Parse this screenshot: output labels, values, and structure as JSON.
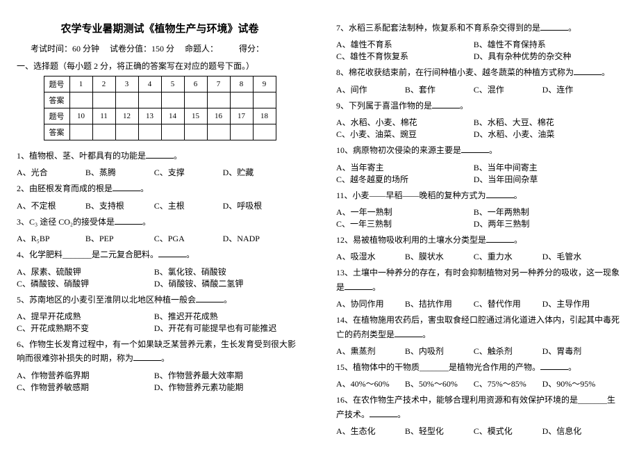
{
  "title": "农学专业暑期测试《植物生产与环境》试卷",
  "meta": {
    "time": "考试时间：60 分钟",
    "score": "试卷分值：150 分",
    "author": "命题人：",
    "got": "得分："
  },
  "instr": "一、选择题（每小题 2 分，将正确的答案写在对应的题号下面。）",
  "tbl": {
    "row1lab": "题号",
    "row2lab": "答案",
    "row3lab": "题号",
    "row4lab": "答案",
    "r1": [
      "1",
      "2",
      "3",
      "4",
      "5",
      "6",
      "7",
      "8",
      "9"
    ],
    "r3": [
      "10",
      "11",
      "12",
      "13",
      "14",
      "15",
      "16",
      "17",
      "18"
    ]
  },
  "left": [
    {
      "q": "1、植物根、茎、叶都具有的功能是",
      "opts": [
        "A、光合",
        "B、蒸腾",
        "C、支撑",
        "D、贮藏"
      ],
      "cls": "four"
    },
    {
      "q": "2、由胚根发育而成的根是",
      "opts": [
        "A、不定根",
        "B、支持根",
        "C、主根",
        "D、呼吸根"
      ],
      "cls": "four"
    },
    {
      "q": "3、C₃ 途径 CO₂的接受体是",
      "opts": [
        "A、R₅BP",
        "B、PEP",
        "C、PGA",
        "D、NADP"
      ],
      "cls": "four"
    },
    {
      "q": "4、化学肥料_______是二元复合肥料。",
      "opts": [
        "A、尿素、硫酸钾",
        "B、氯化铵、硝酸铵",
        "C、磷酸铵、硝酸钾",
        "D、硝酸铵、磷酸二氢钾"
      ],
      "cls": ""
    },
    {
      "q": "5、苏南地区的小麦引至淮阴以北地区种植一般会",
      "opts": [
        "A、提早开花成熟",
        "B、推迟开花成熟",
        "C、开花成熟期不变",
        "D、开花有可能提早也有可能推迟"
      ],
      "cls": ""
    },
    {
      "q": "6、作物生长发育过程中，有一个如果缺乏某营养元素，生长发育受到很大影响而很难弥补损失的时期，称为",
      "opts": [
        "A、作物营养临界期",
        "B、作物营养最大效率期",
        "C、作物营养敏感期",
        "D、作物营养元素功能期"
      ],
      "cls": ""
    }
  ],
  "right": [
    {
      "q": "7、水稻三系配套法制种，恢复系和不育系杂交得到的是",
      "opts": [
        "A、雄性不育系",
        "B、雄性不育保持系",
        "C、雄性不育恢复系",
        "D、具有杂种优势的杂交种"
      ],
      "cls": ""
    },
    {
      "q": "8、棉花收获结束前，在行间种植小麦、越冬蔬菜的种植方式称为",
      "opts": [
        "A、间作",
        "B、套作",
        "C、混作",
        "D、连作"
      ],
      "cls": "four"
    },
    {
      "q": "9、下列属于喜温作物的是",
      "opts": [
        "A、水稻、小麦、棉花",
        "B、水稻、大豆、棉花",
        "C、小麦、油菜、豌豆",
        "D、水稻、小麦、油菜"
      ],
      "cls": ""
    },
    {
      "q": "10、病原物初次侵染的来源主要是",
      "opts": [
        "A、当年寄主",
        "B、当年中间寄主",
        "C、越冬越夏的场所",
        "D、当年田间杂草"
      ],
      "cls": ""
    },
    {
      "q": "11、小麦——早稻——晚稻的复种方式为",
      "opts": [
        "A、一年一熟制",
        "B、一年两熟制",
        "C、一年三熟制",
        "D、两年三熟制"
      ],
      "cls": ""
    },
    {
      "q": "12、易被植物吸收利用的土壤水分类型是",
      "opts": [
        "A、吸湿水",
        "B、膜状水",
        "C、重力水",
        "D、毛管水"
      ],
      "cls": "four"
    },
    {
      "q": "13、土壤中一种养分的存在，有时会抑制植物对另一种养分的吸收，这一现象是",
      "opts": [
        "A、协同作用",
        "B、拮抗作用",
        "C、替代作用",
        "D、主导作用"
      ],
      "cls": "four"
    },
    {
      "q": "14、在植物施用农药后，害虫取食经口腔通过消化道进入体内，引起其中毒死亡的药剂类型是",
      "opts": [
        "A、熏蒸剂",
        "B、内吸剂",
        "C、触杀剂",
        "D、胃毒剂"
      ],
      "cls": "four"
    },
    {
      "q": "15、植物体中的干物质_______是植物光合作用的产物。",
      "opts": [
        "A、40%～60%",
        "B、50%～60%",
        "C、75%～85%",
        "D、90%～95%"
      ],
      "cls": "four"
    },
    {
      "q": "16、在农作物生产技术中，能够合理利用资源和有效保护环境的是_______生产技术。",
      "opts": [
        "A、生态化",
        "B、轻型化",
        "C、模式化",
        "D、信息化"
      ],
      "cls": "four"
    }
  ]
}
